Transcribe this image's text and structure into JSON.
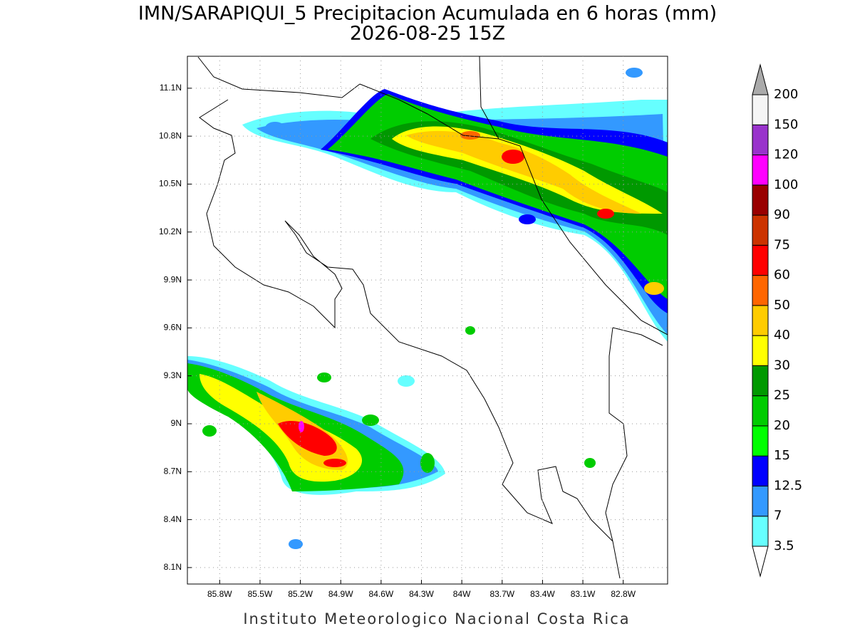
{
  "title": [
    "IMN/SARAPIQUI_5 Precipitacion Acumulada en 6 horas (mm)",
    "2026-08-25 15Z"
  ],
  "credit": "Instituto Meteorologico Nacional Costa Rica",
  "map": {
    "lon_range": [
      -86.04,
      -82.47
    ],
    "lat_range": [
      7.997,
      11.3
    ],
    "lon_ticks": [
      {
        "value": -85.8,
        "label": "85.8W"
      },
      {
        "value": -85.5,
        "label": "85.5W"
      },
      {
        "value": -85.2,
        "label": "85.2W"
      },
      {
        "value": -84.9,
        "label": "84.9W"
      },
      {
        "value": -84.6,
        "label": "84.6W"
      },
      {
        "value": -84.3,
        "label": "84.3W"
      },
      {
        "value": -84.0,
        "label": "84W"
      },
      {
        "value": -83.7,
        "label": "83.7W"
      },
      {
        "value": -83.4,
        "label": "83.4W"
      },
      {
        "value": -83.1,
        "label": "83.1W"
      },
      {
        "value": -82.8,
        "label": "82.8W"
      }
    ],
    "lat_ticks": [
      {
        "value": 8.1,
        "label": "8.1N"
      },
      {
        "value": 8.4,
        "label": "8.4N"
      },
      {
        "value": 8.7,
        "label": "8.7N"
      },
      {
        "value": 9.0,
        "label": "9N"
      },
      {
        "value": 9.3,
        "label": "9.3N"
      },
      {
        "value": 9.6,
        "label": "9.6N"
      },
      {
        "value": 9.9,
        "label": "9.9N"
      },
      {
        "value": 10.2,
        "label": "10.2N"
      },
      {
        "value": 10.5,
        "label": "10.5N"
      },
      {
        "value": 10.8,
        "label": "10.8N"
      },
      {
        "value": 11.1,
        "label": "11.1N"
      }
    ],
    "grid": true
  },
  "colorbar": {
    "levels": [
      3.5,
      7,
      12.5,
      15,
      20,
      25,
      30,
      40,
      50,
      60,
      75,
      90,
      100,
      120,
      150,
      200
    ],
    "colors": [
      "#66ffff",
      "#3399ff",
      "#0000ff",
      "#00ff00",
      "#00cc00",
      "#009900",
      "#ffff00",
      "#ffcc00",
      "#ff6600",
      "#ff0000",
      "#cc3300",
      "#990000",
      "#ff00ff",
      "#9933cc",
      "#f5f5f5"
    ],
    "under_color": "#ffffff",
    "over_color": "#aaaaaa"
  }
}
